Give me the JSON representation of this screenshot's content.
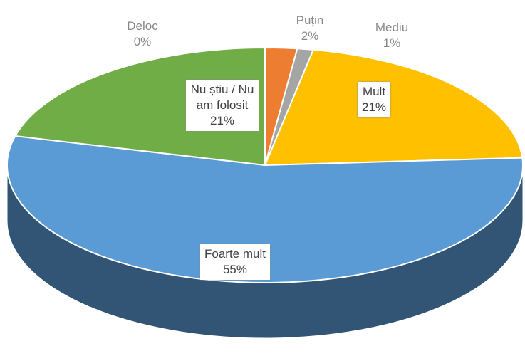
{
  "chart_data": {
    "type": "pie",
    "categories": [
      "Deloc",
      "Puțin",
      "Mediu",
      "Mult",
      "Foarte mult",
      "Nu știu / Nu am folosit"
    ],
    "values": [
      0,
      2,
      1,
      21,
      55,
      21
    ],
    "value_labels": [
      "0%",
      "2%",
      "1%",
      "21%",
      "55%",
      "21%"
    ],
    "colors": [
      "#4472c4",
      "#ed7d31",
      "#a5a5a5",
      "#ffc000",
      "#5b9bd5",
      "#70ad47"
    ]
  }
}
